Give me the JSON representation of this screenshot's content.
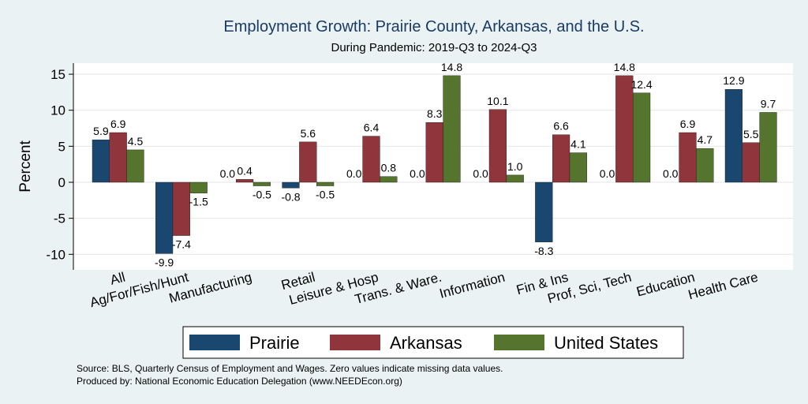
{
  "chart_data": {
    "type": "bar",
    "title": "Employment Growth: Prairie County, Arkansas, and the U.S.",
    "subtitle": "During Pandemic: 2019-Q3 to 2024-Q3",
    "ylabel": "Percent",
    "ylim": [
      -12,
      17
    ],
    "yticks": [
      -10,
      -5,
      0,
      5,
      10,
      15
    ],
    "grid": true,
    "legend_position": "bottom",
    "categories": [
      "All",
      "Ag/For/Fish/Hunt",
      "Manufacturing",
      "Retail",
      "Leisure & Hosp",
      "Trans. & Ware.",
      "Information",
      "Fin & Ins",
      "Prof, Sci, Tech",
      "Education",
      "Health Care"
    ],
    "series": [
      {
        "name": "Prairie",
        "color": "#1a476f",
        "values": [
          5.9,
          -9.9,
          0.0,
          -0.8,
          0.0,
          0.0,
          0.0,
          -8.3,
          0.0,
          0.0,
          12.9
        ]
      },
      {
        "name": "Arkansas",
        "color": "#90353b",
        "values": [
          6.9,
          -7.4,
          0.4,
          5.6,
          6.4,
          8.3,
          10.1,
          6.6,
          14.8,
          6.9,
          5.5
        ]
      },
      {
        "name": "United States",
        "color": "#55752f",
        "values": [
          4.5,
          -1.5,
          -0.5,
          -0.5,
          0.8,
          14.8,
          1.0,
          4.1,
          12.4,
          4.7,
          9.7
        ]
      }
    ]
  },
  "notes": {
    "source": "Source: BLS, Quarterly Census of Employment and Wages. Zero values indicate missing data values.",
    "produced": "Produced by: National Economic Education Delegation (www.NEEDEcon.org)"
  }
}
